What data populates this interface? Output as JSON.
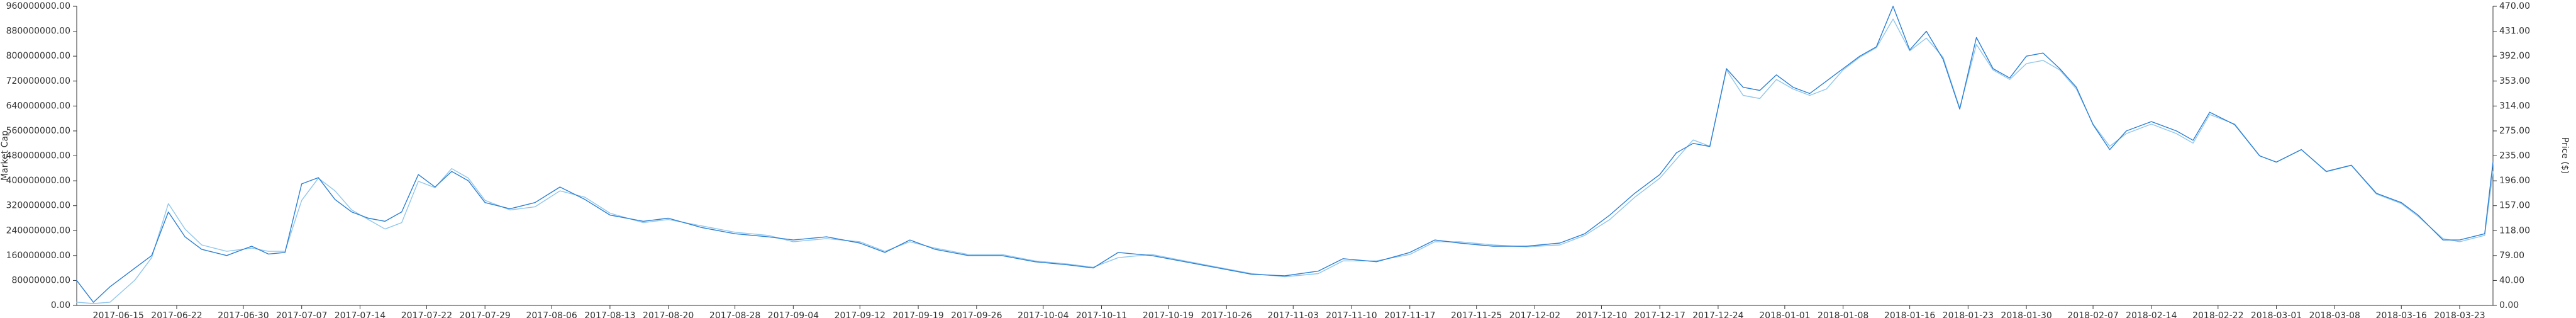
{
  "chart_data": {
    "type": "line",
    "title": "",
    "xlabel": "",
    "ylabel_left": "Market Cap",
    "ylabel_right": "Price ($)",
    "grid": false,
    "legend": "none",
    "x_tick_labels": [
      "2017-06-15",
      "2017-06-22",
      "2017-06-30",
      "2017-07-07",
      "2017-07-14",
      "2017-07-22",
      "2017-07-29",
      "2017-08-06",
      "2017-08-13",
      "2017-08-20",
      "2017-08-28",
      "2017-09-04",
      "2017-09-12",
      "2017-09-19",
      "2017-09-26",
      "2017-10-04",
      "2017-10-11",
      "2017-10-19",
      "2017-10-26",
      "2017-11-03",
      "2017-11-10",
      "2017-11-17",
      "2017-11-25",
      "2017-12-02",
      "2017-12-10",
      "2017-12-17",
      "2017-12-24",
      "2018-01-01",
      "2018-01-08",
      "2018-01-16",
      "2018-01-23",
      "2018-01-30",
      "2018-02-07",
      "2018-02-14",
      "2018-02-22",
      "2018-03-01",
      "2018-03-08",
      "2018-03-16",
      "2018-03-23"
    ],
    "y_left_ticks": [
      "0.00",
      "80000000.00",
      "160000000.00",
      "240000000.00",
      "320000000.00",
      "400000000.00",
      "480000000.00",
      "560000000.00",
      "640000000.00",
      "720000000.00",
      "800000000.00",
      "880000000.00",
      "960000000.00"
    ],
    "y_right_ticks": [
      "0.00",
      "40.00",
      "79.00",
      "118.00",
      "157.00",
      "196.00",
      "235.00",
      "275.00",
      "314.00",
      "353.00",
      "392.00",
      "431.00",
      "470.00"
    ],
    "ylim_left": [
      0,
      960000000
    ],
    "ylim_right": [
      0,
      470
    ],
    "series": [
      {
        "axis": "left",
        "color": "#2a7fd4",
        "x": [
          "2017-06-10",
          "2017-06-12",
          "2017-06-14",
          "2017-06-17",
          "2017-06-19",
          "2017-06-21",
          "2017-06-23",
          "2017-06-25",
          "2017-06-28",
          "2017-07-01",
          "2017-07-03",
          "2017-07-05",
          "2017-07-07",
          "2017-07-09",
          "2017-07-11",
          "2017-07-13",
          "2017-07-15",
          "2017-07-17",
          "2017-07-19",
          "2017-07-21",
          "2017-07-23",
          "2017-07-25",
          "2017-07-27",
          "2017-07-29",
          "2017-08-01",
          "2017-08-04",
          "2017-08-07",
          "2017-08-10",
          "2017-08-13",
          "2017-08-17",
          "2017-08-20",
          "2017-08-24",
          "2017-08-28",
          "2017-09-01",
          "2017-09-04",
          "2017-09-08",
          "2017-09-12",
          "2017-09-15",
          "2017-09-18",
          "2017-09-21",
          "2017-09-25",
          "2017-09-29",
          "2017-10-03",
          "2017-10-07",
          "2017-10-10",
          "2017-10-13",
          "2017-10-17",
          "2017-10-21",
          "2017-10-25",
          "2017-10-29",
          "2017-11-02",
          "2017-11-06",
          "2017-11-09",
          "2017-11-13",
          "2017-11-17",
          "2017-11-20",
          "2017-11-23",
          "2017-11-27",
          "2017-12-01",
          "2017-12-05",
          "2017-12-08",
          "2017-12-11",
          "2017-12-14",
          "2017-12-17",
          "2017-12-19",
          "2017-12-21",
          "2017-12-23",
          "2017-12-25",
          "2017-12-27",
          "2017-12-29",
          "2017-12-31",
          "2018-01-02",
          "2018-01-04",
          "2018-01-06",
          "2018-01-08",
          "2018-01-10",
          "2018-01-12",
          "2018-01-14",
          "2018-01-16",
          "2018-01-18",
          "2018-01-20",
          "2018-01-22",
          "2018-01-24",
          "2018-01-26",
          "2018-01-28",
          "2018-01-30",
          "2018-02-01",
          "2018-02-03",
          "2018-02-05",
          "2018-02-07",
          "2018-02-09",
          "2018-02-11",
          "2018-02-14",
          "2018-02-17",
          "2018-02-19",
          "2018-02-21",
          "2018-02-24",
          "2018-02-27",
          "2018-03-01",
          "2018-03-04",
          "2018-03-07",
          "2018-03-10",
          "2018-03-13",
          "2018-03-16",
          "2018-03-18",
          "2018-03-21",
          "2018-03-23",
          "2018-03-26",
          "2018-03-27"
        ],
        "values": [
          80000000,
          10000000,
          60000000,
          120000000,
          160000000,
          300000000,
          220000000,
          180000000,
          160000000,
          190000000,
          165000000,
          170000000,
          390000000,
          410000000,
          340000000,
          300000000,
          280000000,
          270000000,
          300000000,
          420000000,
          380000000,
          430000000,
          400000000,
          330000000,
          310000000,
          330000000,
          380000000,
          340000000,
          290000000,
          270000000,
          280000000,
          250000000,
          230000000,
          220000000,
          210000000,
          220000000,
          200000000,
          170000000,
          210000000,
          180000000,
          160000000,
          160000000,
          140000000,
          130000000,
          120000000,
          170000000,
          160000000,
          140000000,
          120000000,
          100000000,
          95000000,
          110000000,
          150000000,
          140000000,
          170000000,
          210000000,
          200000000,
          190000000,
          190000000,
          200000000,
          230000000,
          290000000,
          360000000,
          420000000,
          490000000,
          520000000,
          510000000,
          760000000,
          700000000,
          690000000,
          740000000,
          700000000,
          680000000,
          720000000,
          760000000,
          800000000,
          830000000,
          960000000,
          820000000,
          880000000,
          790000000,
          630000000,
          860000000,
          760000000,
          730000000,
          800000000,
          810000000,
          760000000,
          700000000,
          580000000,
          500000000,
          560000000,
          590000000,
          560000000,
          530000000,
          620000000,
          580000000,
          480000000,
          460000000,
          500000000,
          430000000,
          450000000,
          360000000,
          330000000,
          290000000,
          210000000,
          210000000,
          230000000,
          460000000
        ]
      },
      {
        "axis": "right",
        "color": "#8fc6ec",
        "x": [
          "2017-06-10",
          "2017-06-12",
          "2017-06-14",
          "2017-06-17",
          "2017-06-19",
          "2017-06-21",
          "2017-06-23",
          "2017-06-25",
          "2017-06-28",
          "2017-07-01",
          "2017-07-03",
          "2017-07-05",
          "2017-07-07",
          "2017-07-09",
          "2017-07-11",
          "2017-07-13",
          "2017-07-15",
          "2017-07-17",
          "2017-07-19",
          "2017-07-21",
          "2017-07-23",
          "2017-07-25",
          "2017-07-27",
          "2017-07-29",
          "2017-08-01",
          "2017-08-04",
          "2017-08-07",
          "2017-08-10",
          "2017-08-13",
          "2017-08-17",
          "2017-08-20",
          "2017-08-24",
          "2017-08-28",
          "2017-09-01",
          "2017-09-04",
          "2017-09-08",
          "2017-09-12",
          "2017-09-15",
          "2017-09-18",
          "2017-09-21",
          "2017-09-25",
          "2017-09-29",
          "2017-10-03",
          "2017-10-07",
          "2017-10-10",
          "2017-10-13",
          "2017-10-17",
          "2017-10-21",
          "2017-10-25",
          "2017-10-29",
          "2017-11-02",
          "2017-11-06",
          "2017-11-09",
          "2017-11-13",
          "2017-11-17",
          "2017-11-20",
          "2017-11-23",
          "2017-11-27",
          "2017-12-01",
          "2017-12-05",
          "2017-12-08",
          "2017-12-11",
          "2017-12-14",
          "2017-12-17",
          "2017-12-19",
          "2017-12-21",
          "2017-12-23",
          "2017-12-25",
          "2017-12-27",
          "2017-12-29",
          "2017-12-31",
          "2018-01-02",
          "2018-01-04",
          "2018-01-06",
          "2018-01-08",
          "2018-01-10",
          "2018-01-12",
          "2018-01-14",
          "2018-01-16",
          "2018-01-18",
          "2018-01-20",
          "2018-01-22",
          "2018-01-24",
          "2018-01-26",
          "2018-01-28",
          "2018-01-30",
          "2018-02-01",
          "2018-02-03",
          "2018-02-05",
          "2018-02-07",
          "2018-02-09",
          "2018-02-11",
          "2018-02-14",
          "2018-02-17",
          "2018-02-19",
          "2018-02-21",
          "2018-02-24",
          "2018-02-27",
          "2018-03-01",
          "2018-03-04",
          "2018-03-07",
          "2018-03-10",
          "2018-03-13",
          "2018-03-16",
          "2018-03-18",
          "2018-03-21",
          "2018-03-23",
          "2018-03-26",
          "2018-03-27"
        ],
        "values": [
          5,
          3,
          5,
          40,
          75,
          160,
          120,
          95,
          85,
          90,
          85,
          85,
          165,
          200,
          180,
          150,
          135,
          120,
          130,
          195,
          185,
          215,
          200,
          165,
          150,
          155,
          180,
          170,
          145,
          130,
          135,
          125,
          115,
          110,
          100,
          105,
          100,
          85,
          100,
          90,
          80,
          80,
          70,
          65,
          60,
          75,
          80,
          70,
          60,
          50,
          45,
          50,
          70,
          70,
          80,
          100,
          100,
          95,
          92,
          95,
          110,
          135,
          170,
          200,
          230,
          260,
          250,
          370,
          330,
          325,
          355,
          340,
          330,
          340,
          370,
          390,
          405,
          450,
          400,
          420,
          390,
          310,
          410,
          370,
          355,
          380,
          385,
          370,
          340,
          285,
          250,
          270,
          285,
          270,
          255,
          300,
          285,
          235,
          225,
          245,
          210,
          220,
          175,
          160,
          140,
          105,
          100,
          110,
          210
        ]
      }
    ]
  }
}
